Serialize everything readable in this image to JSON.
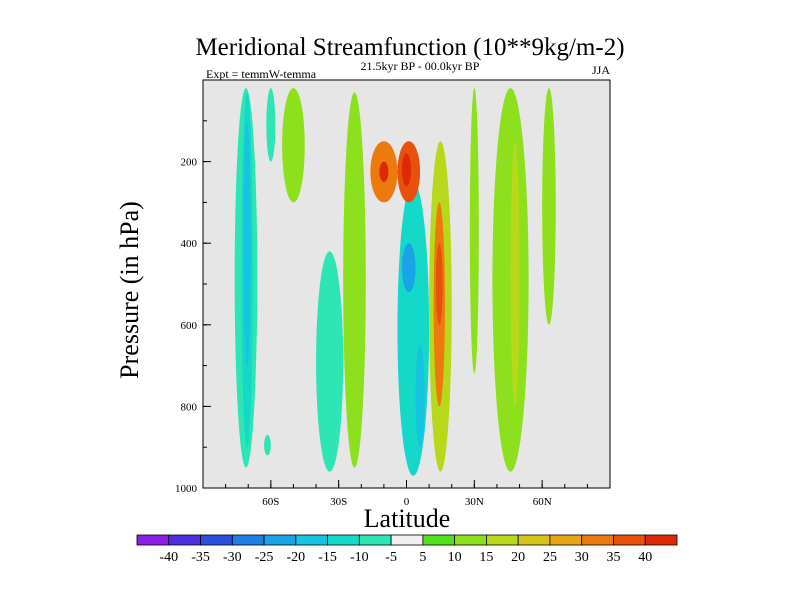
{
  "chart_data": {
    "type": "heatmap",
    "title": "Meridional Streamfunction (10**9kg/m-2)",
    "left_annotation": "Expt = temmW-temma",
    "center_annotation": "21.5kyr BP - 00.0kyr BP",
    "right_annotation": "JJA",
    "xlabel": "Latitude",
    "ylabel": "Pressure (in hPa)",
    "xlim": [
      -90,
      90
    ],
    "ylim": [
      0,
      1000
    ],
    "y_inverted": true,
    "x_ticks": [
      {
        "value": -60,
        "label": "60S"
      },
      {
        "value": -30,
        "label": "30S"
      },
      {
        "value": 0,
        "label": "0"
      },
      {
        "value": 30,
        "label": "30N"
      },
      {
        "value": 60,
        "label": "60N"
      }
    ],
    "y_ticks": [
      {
        "value": 200,
        "label": "200"
      },
      {
        "value": 400,
        "label": "400"
      },
      {
        "value": 600,
        "label": "600"
      },
      {
        "value": 800,
        "label": "800"
      },
      {
        "value": 1000,
        "label": "1000"
      }
    ],
    "missing_color": "#e6e6e6",
    "colorbar": {
      "levels": [
        -40,
        -35,
        -30,
        -25,
        -20,
        -15,
        -10,
        -5,
        5,
        10,
        15,
        20,
        25,
        30,
        35,
        40
      ],
      "labels": [
        "-40",
        "-35",
        "-30",
        "-25",
        "-20",
        "-15",
        "-10",
        "-5",
        "5",
        "10",
        "15",
        "20",
        "25",
        "30",
        "35",
        "40"
      ],
      "colors": [
        "#8d1ee6",
        "#4d2ee0",
        "#2c4fe2",
        "#1f7de6",
        "#1aa3e6",
        "#16c3e0",
        "#14d8c8",
        "#2ee6b4",
        "#f0f0f0",
        "#50e01c",
        "#8ce01c",
        "#b8d81a",
        "#d8c416",
        "#e8a412",
        "#ec7a0e",
        "#e8500c",
        "#dc2a08"
      ]
    },
    "regions": [
      {
        "name": "sh-polar-cell",
        "value": -10,
        "lat": [
          -76,
          -66
        ],
        "p": [
          20,
          950
        ]
      },
      {
        "name": "sh-polar-core",
        "value": -15,
        "lat": [
          -73,
          -68
        ],
        "p": [
          30,
          900
        ]
      },
      {
        "name": "sh-polar-inner",
        "value": -20,
        "lat": [
          -72,
          -69
        ],
        "p": [
          100,
          700
        ]
      },
      {
        "name": "sh-midlat-band",
        "value": -10,
        "lat": [
          -40,
          -28
        ],
        "p": [
          420,
          960
        ]
      },
      {
        "name": "sh-upper-band",
        "value": -10,
        "lat": [
          -62,
          -58
        ],
        "p": [
          20,
          200
        ]
      },
      {
        "name": "sh-small-patch",
        "value": -10,
        "lat": [
          -63,
          -60
        ],
        "p": [
          870,
          920
        ]
      },
      {
        "name": "hadley-sh-negative",
        "value": -15,
        "lat": [
          -4,
          10
        ],
        "p": [
          250,
          970
        ]
      },
      {
        "name": "hadley-sh-core",
        "value": -25,
        "lat": [
          -2,
          4
        ],
        "p": [
          400,
          520
        ]
      },
      {
        "name": "hadley-sh-lower",
        "value": -20,
        "lat": [
          4,
          8
        ],
        "p": [
          650,
          900
        ]
      },
      {
        "name": "nh-subtropic-positive",
        "value": 15,
        "lat": [
          10,
          20
        ],
        "p": [
          150,
          960
        ]
      },
      {
        "name": "nh-subtropic-core",
        "value": 30,
        "lat": [
          12,
          17
        ],
        "p": [
          300,
          800
        ]
      },
      {
        "name": "nh-subtropic-inner",
        "value": 35,
        "lat": [
          13,
          16
        ],
        "p": [
          400,
          600
        ]
      },
      {
        "name": "upper-dipole-left",
        "value": 30,
        "lat": [
          -16,
          -4
        ],
        "p": [
          150,
          300
        ]
      },
      {
        "name": "upper-dipole-left-core",
        "value": 40,
        "lat": [
          -12,
          -8
        ],
        "p": [
          200,
          250
        ]
      },
      {
        "name": "upper-dipole-right",
        "value": 35,
        "lat": [
          -4,
          6
        ],
        "p": [
          150,
          300
        ]
      },
      {
        "name": "upper-dipole-right-core",
        "value": 40,
        "lat": [
          -2,
          2
        ],
        "p": [
          180,
          260
        ]
      },
      {
        "name": "sh-mid-positive",
        "value": 10,
        "lat": [
          -55,
          -45
        ],
        "p": [
          20,
          300
        ]
      },
      {
        "name": "tropics-upper-positive",
        "value": 10,
        "lat": [
          -28,
          -18
        ],
        "p": [
          30,
          950
        ]
      },
      {
        "name": "nh-midlat-positive",
        "value": 10,
        "lat": [
          38,
          54
        ],
        "p": [
          20,
          960
        ]
      },
      {
        "name": "nh-midlat-core",
        "value": 15,
        "lat": [
          46,
          50
        ],
        "p": [
          150,
          800
        ]
      },
      {
        "name": "nh-polar-positive",
        "value": 10,
        "lat": [
          60,
          66
        ],
        "p": [
          20,
          600
        ]
      },
      {
        "name": "nh-outer-positive",
        "value": 10,
        "lat": [
          28,
          32
        ],
        "p": [
          20,
          720
        ]
      }
    ]
  }
}
